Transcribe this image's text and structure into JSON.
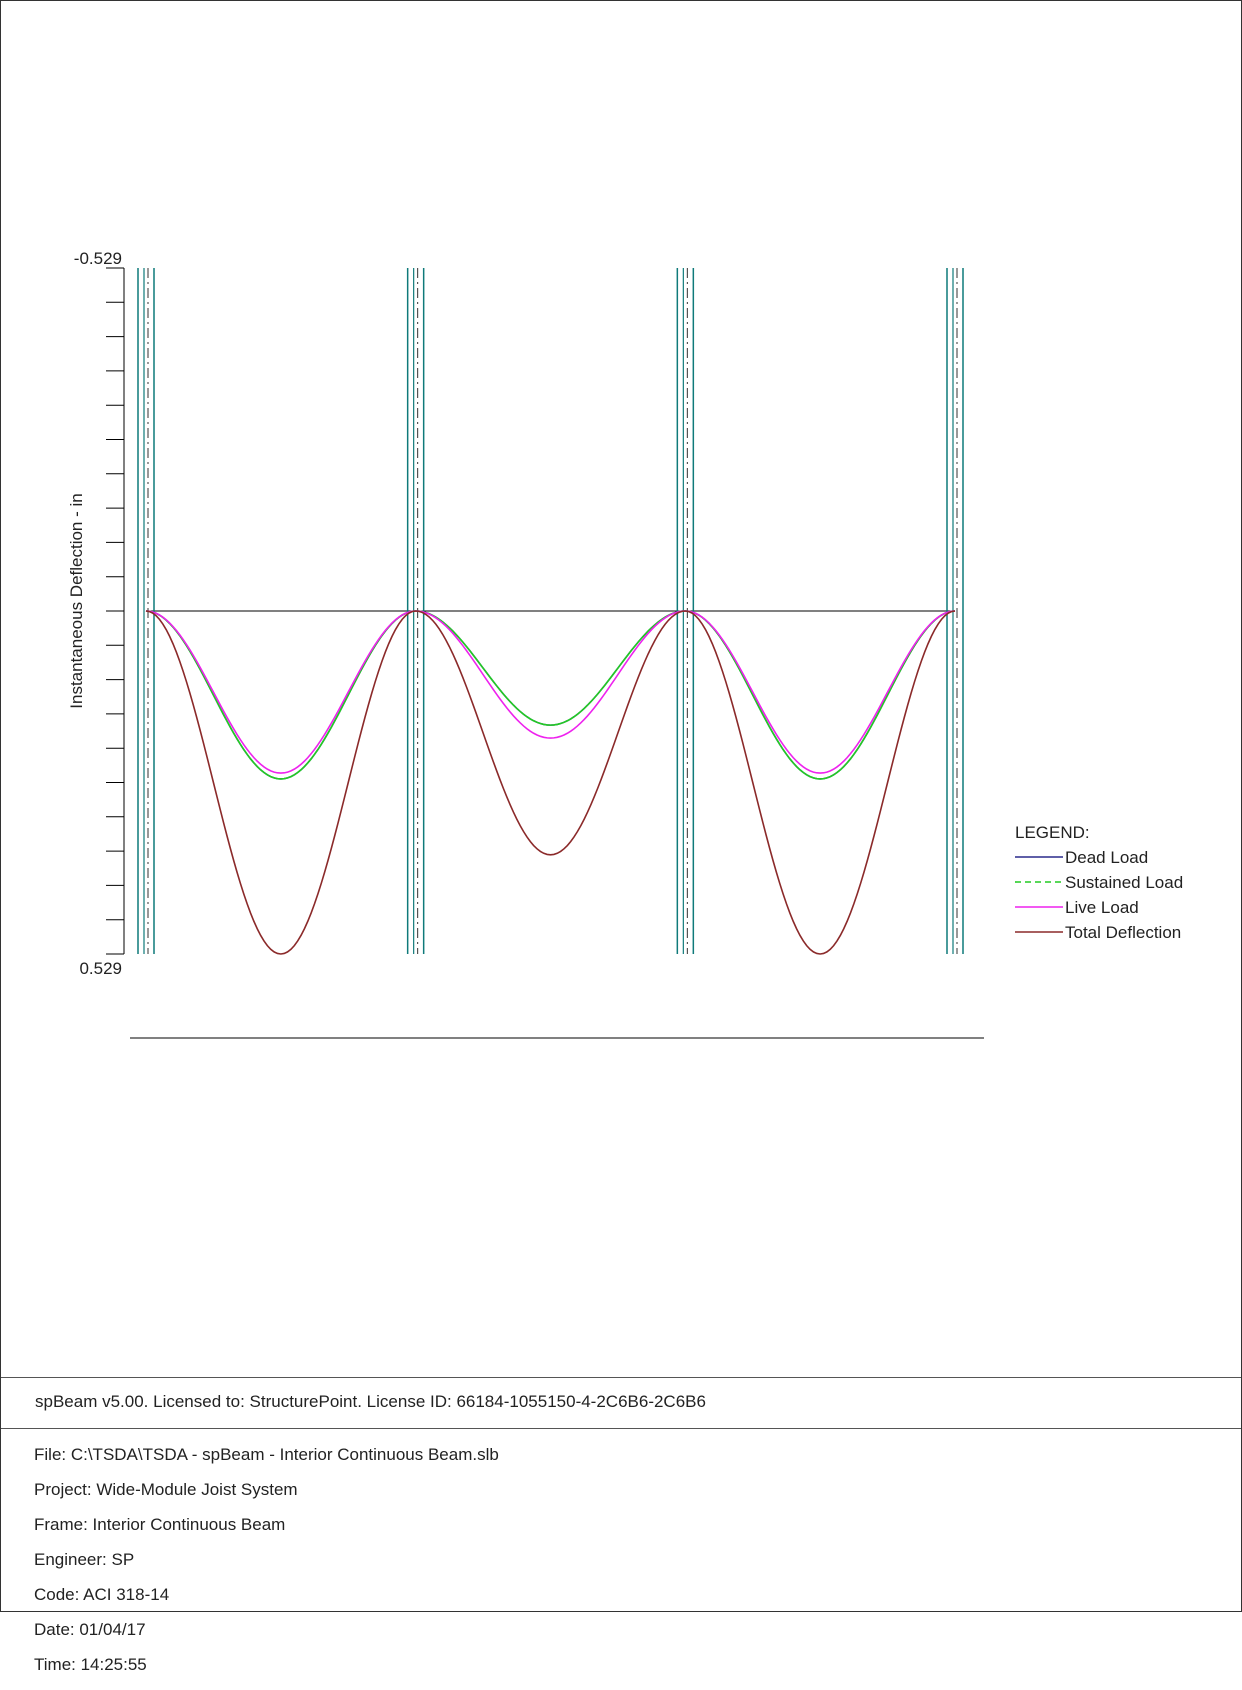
{
  "chart_data": {
    "type": "line",
    "ylabel": "Instantaneous Deflection - in",
    "y_top_label": "-0.529",
    "y_bottom_label": "0.529",
    "ylim": [
      -0.529,
      0.529
    ],
    "supports_x": [
      0,
      30,
      60,
      90
    ],
    "xlim": [
      0,
      90
    ],
    "legend": {
      "title": "LEGEND:",
      "placement": "right",
      "entries": [
        {
          "name": "Dead Load",
          "color": "#2a2a8c",
          "style": "solid"
        },
        {
          "name": "Sustained Load",
          "color": "#22cc22",
          "style": "dashed"
        },
        {
          "name": "Live Load",
          "color": "#ee22ee",
          "style": "solid"
        },
        {
          "name": "Total Deflection",
          "color": "#8b2a2a",
          "style": "solid"
        }
      ]
    },
    "series": [
      {
        "name": "Dead Load",
        "color": "#2a2a8c",
        "spans": [
          [
            0,
            30,
            0.259
          ],
          [
            30,
            60,
            0.176
          ],
          [
            60,
            90,
            0.259
          ]
        ]
      },
      {
        "name": "Sustained Load",
        "color": "#22cc22",
        "spans": [
          [
            0,
            30,
            0.259
          ],
          [
            30,
            60,
            0.176
          ],
          [
            60,
            90,
            0.259
          ]
        ]
      },
      {
        "name": "Live Load",
        "color": "#ee22ee",
        "spans": [
          [
            0,
            30,
            0.25
          ],
          [
            30,
            60,
            0.196
          ],
          [
            60,
            90,
            0.25
          ]
        ]
      },
      {
        "name": "Total Deflection",
        "color": "#8b2a2a",
        "spans": [
          [
            0,
            30,
            0.529
          ],
          [
            30,
            60,
            0.376
          ],
          [
            60,
            90,
            0.529
          ]
        ]
      }
    ]
  },
  "footer": {
    "license": "spBeam v5.00. Licensed to: StructurePoint. License ID: 66184-1055150-4-2C6B6-2C6B6",
    "file": "File: C:\\TSDA\\TSDA - spBeam - Interior Continuous Beam.slb",
    "project": "Project: Wide-Module Joist System",
    "frame": "Frame: Interior Continuous Beam",
    "engineer": "Engineer: SP",
    "code": "Code: ACI 318-14",
    "date": "Date: 01/04/17",
    "time": "Time: 14:25:55"
  }
}
